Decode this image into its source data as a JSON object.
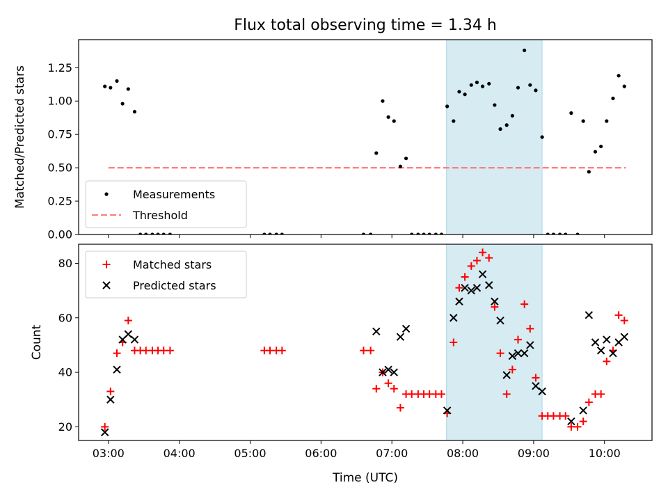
{
  "title": "Flux total observing time = 1.34 h",
  "colors": {
    "measure": "#000000",
    "threshold": "#ff7f7f",
    "matched": "#ff0000",
    "predicted": "#000000",
    "shade": "#add8e6"
  },
  "chart_data": [
    {
      "type": "scatter",
      "ylabel": "Matched/Predicted stars",
      "xlim": [
        2.58,
        10.67
      ],
      "ylim": [
        0,
        1.46
      ],
      "xticks": [
        "03:00",
        "04:00",
        "05:00",
        "06:00",
        "07:00",
        "08:00",
        "09:00",
        "10:00"
      ],
      "yticks": [
        "0.00",
        "0.25",
        "0.50",
        "0.75",
        "1.00",
        "1.25"
      ],
      "legend": {
        "placement": "bottom-left",
        "entries": [
          "Measurements",
          "Threshold"
        ]
      },
      "threshold": 0.5,
      "threshold_x": [
        3.0,
        10.3
      ],
      "shaded_x": [
        7.77,
        9.12
      ],
      "series": [
        {
          "name": "Measurements",
          "x": [
            2.95,
            3.03,
            3.12,
            3.2,
            3.28,
            3.37,
            3.45,
            3.53,
            3.62,
            3.7,
            3.78,
            3.87,
            5.2,
            5.28,
            5.37,
            5.45,
            6.6,
            6.7,
            6.78,
            6.87,
            6.95,
            7.03,
            7.12,
            7.2,
            7.28,
            7.37,
            7.45,
            7.53,
            7.62,
            7.7,
            7.78,
            7.87,
            7.95,
            8.03,
            8.12,
            8.2,
            8.28,
            8.37,
            8.45,
            8.53,
            8.62,
            8.7,
            8.78,
            8.87,
            8.95,
            9.03,
            9.12,
            9.2,
            9.28,
            9.37,
            9.45,
            9.53,
            9.62,
            9.7,
            9.78,
            9.87,
            9.95,
            10.03,
            10.12,
            10.2,
            10.28
          ],
          "y": [
            1.11,
            1.1,
            1.15,
            0.98,
            1.09,
            0.92,
            0,
            0,
            0,
            0,
            0,
            0,
            0,
            0,
            0,
            0,
            0,
            0,
            0.61,
            1.0,
            0.88,
            0.85,
            0.51,
            0.57,
            0,
            0,
            0,
            0,
            0,
            0,
            0.96,
            0.85,
            1.07,
            1.05,
            1.12,
            1.14,
            1.11,
            1.13,
            0.97,
            0.79,
            0.82,
            0.89,
            1.1,
            1.38,
            1.12,
            1.08,
            0.73,
            0,
            0,
            0,
            0,
            0.91,
            0,
            0.85,
            0.47,
            0.62,
            0.66,
            0.85,
            1.02,
            1.19,
            1.11
          ]
        }
      ]
    },
    {
      "type": "scatter",
      "xlabel": "Time (UTC)",
      "ylabel": "Count",
      "xlim": [
        2.58,
        10.67
      ],
      "ylim": [
        15,
        87
      ],
      "xticks": [
        "03:00",
        "04:00",
        "05:00",
        "06:00",
        "07:00",
        "08:00",
        "09:00",
        "10:00"
      ],
      "yticks": [
        "20",
        "40",
        "60",
        "80"
      ],
      "legend": {
        "placement": "top-left",
        "entries": [
          "Matched stars",
          "Predicted stars"
        ]
      },
      "shaded_x": [
        7.77,
        9.12
      ],
      "series": [
        {
          "name": "Matched stars",
          "x": [
            2.95,
            3.03,
            3.12,
            3.2,
            3.28,
            3.37,
            3.45,
            3.53,
            3.62,
            3.7,
            3.78,
            3.87,
            5.2,
            5.28,
            5.37,
            5.45,
            6.6,
            6.7,
            6.78,
            6.87,
            6.95,
            7.03,
            7.12,
            7.2,
            7.28,
            7.37,
            7.45,
            7.53,
            7.62,
            7.7,
            7.78,
            7.87,
            7.95,
            8.03,
            8.12,
            8.2,
            8.28,
            8.37,
            8.45,
            8.53,
            8.62,
            8.7,
            8.78,
            8.87,
            8.95,
            9.03,
            9.12,
            9.2,
            9.28,
            9.37,
            9.45,
            9.53,
            9.62,
            9.7,
            9.78,
            9.87,
            9.95,
            10.03,
            10.12,
            10.2,
            10.28
          ],
          "y": [
            20,
            33,
            47,
            51,
            59,
            48,
            48,
            48,
            48,
            48,
            48,
            48,
            48,
            48,
            48,
            48,
            48,
            48,
            34,
            40,
            36,
            34,
            27,
            32,
            32,
            32,
            32,
            32,
            32,
            32,
            25,
            51,
            71,
            75,
            79,
            81,
            84,
            82,
            64,
            47,
            32,
            41,
            52,
            65,
            56,
            38,
            24,
            24,
            24,
            24,
            24,
            20,
            20,
            22,
            29,
            32,
            32,
            44,
            48,
            61,
            59
          ]
        },
        {
          "name": "Predicted stars",
          "x": [
            2.95,
            3.03,
            3.12,
            3.2,
            3.28,
            3.37,
            6.78,
            6.87,
            6.95,
            7.03,
            7.12,
            7.2,
            7.78,
            7.87,
            7.95,
            8.03,
            8.12,
            8.2,
            8.28,
            8.37,
            8.45,
            8.53,
            8.62,
            8.7,
            8.78,
            8.87,
            8.95,
            9.03,
            9.12,
            9.53,
            9.7,
            9.78,
            9.87,
            9.95,
            10.03,
            10.12,
            10.2,
            10.28
          ],
          "y": [
            18,
            30,
            41,
            52,
            54,
            52,
            55,
            40,
            41,
            40,
            53,
            56,
            26,
            60,
            66,
            71,
            70,
            71,
            76,
            72,
            66,
            59,
            39,
            46,
            47,
            47,
            50,
            35,
            33,
            22,
            26,
            61,
            51,
            48,
            52,
            47,
            51,
            53
          ]
        }
      ]
    }
  ]
}
